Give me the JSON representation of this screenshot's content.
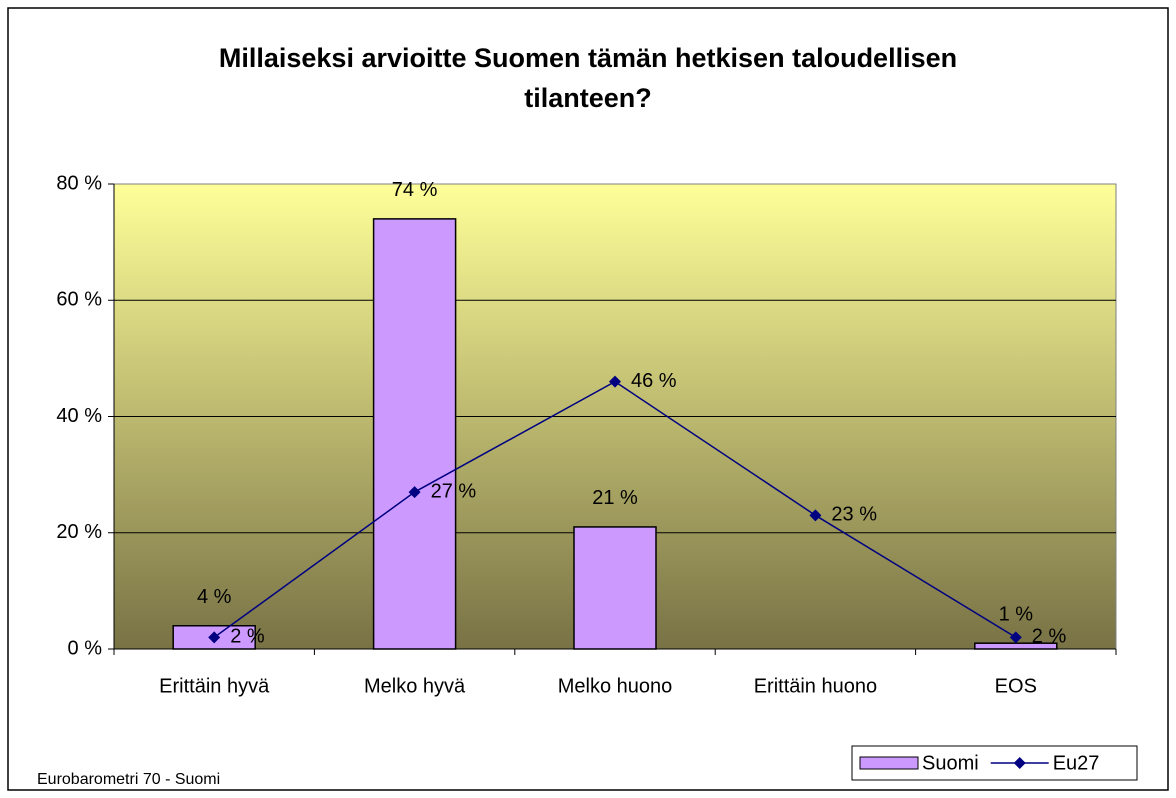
{
  "chart_data": {
    "type": "bar-line",
    "title": "Millaiseksi arvioitte Suomen tämän hetkisen taloudellisen tilanteen?",
    "source": "Eurobarometri 70 - Suomi",
    "categories": [
      "Erittäin hyvä",
      "Melko hyvä",
      "Melko huono",
      "Erittäin huono",
      "EOS"
    ],
    "series": [
      {
        "name": "Suomi",
        "type": "bar",
        "color": "#cc99ff",
        "values": [
          4,
          74,
          21,
          null,
          1
        ],
        "value_labels": [
          "4 %",
          "74 %",
          "21 %",
          null,
          "1 %"
        ]
      },
      {
        "name": "Eu27",
        "type": "line",
        "color": "#000080",
        "values": [
          2,
          27,
          46,
          23,
          2
        ],
        "value_labels": [
          "2 %",
          "27 %",
          "46 %",
          "23 %",
          "2 %"
        ]
      }
    ],
    "ylim": [
      0,
      80
    ],
    "yticks": [
      {
        "value": 0,
        "label": "0 %"
      },
      {
        "value": 20,
        "label": "20 %"
      },
      {
        "value": 40,
        "label": "40 %"
      },
      {
        "value": 60,
        "label": "60 %"
      },
      {
        "value": 80,
        "label": "80 %"
      }
    ],
    "grid": true,
    "legend": "bottom-right"
  }
}
